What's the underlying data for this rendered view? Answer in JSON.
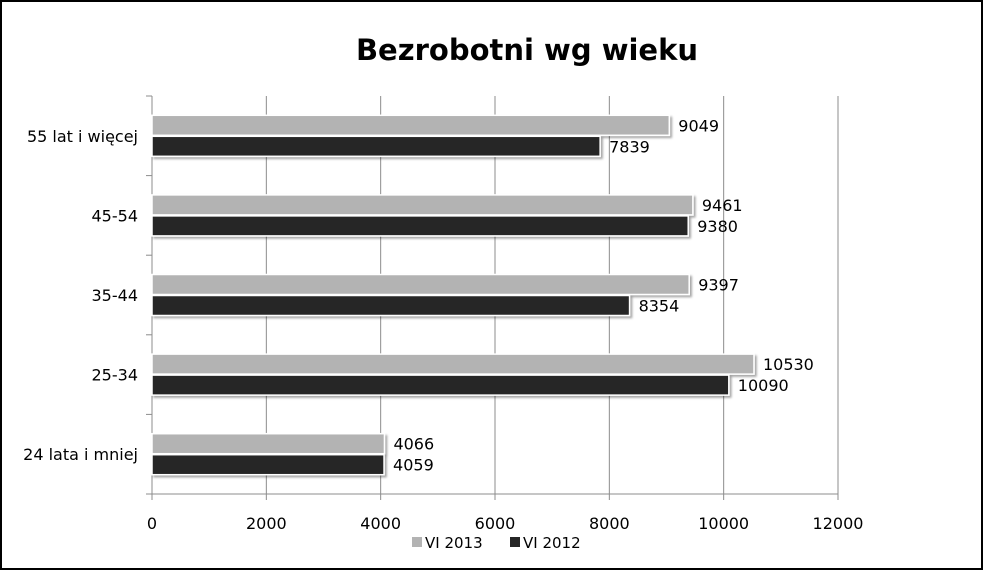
{
  "chart_data": {
    "type": "bar",
    "orientation": "horizontal",
    "title": "Bezrobotni wg wieku",
    "categories": [
      "24 lata i mniej",
      "25-34",
      "35-44",
      "45-54",
      "55 lat i więcej"
    ],
    "series": [
      {
        "name": "VI 2013",
        "values": [
          4066,
          10530,
          9397,
          9461,
          9049
        ],
        "color": "#b3b3b3"
      },
      {
        "name": "VI 2012",
        "values": [
          4059,
          10090,
          8354,
          9380,
          7839
        ],
        "color": "#262626"
      }
    ],
    "xlim": [
      0,
      12000
    ],
    "xticks": [
      0,
      2000,
      4000,
      6000,
      8000,
      10000,
      12000
    ],
    "xlabel": "",
    "ylabel": "",
    "grid": "vertical major gridlines",
    "legend": "bottom"
  }
}
